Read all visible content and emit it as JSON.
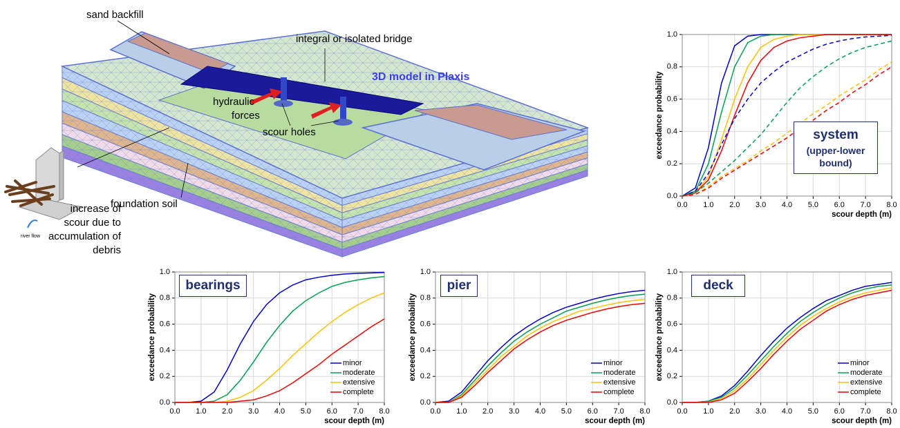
{
  "diagram": {
    "labels": [
      "sand backfill",
      "integral or isolated bridge",
      "3D model in Plaxis",
      "hydraulic",
      "forces",
      "scour holes",
      "foundation soil",
      "increase of",
      "scour due to",
      "accumulation of",
      "debris",
      "river flow"
    ]
  },
  "chart_data": [
    {
      "type": "line",
      "title": "system",
      "subtitle": "(upper-lower bound)",
      "xlabel": "scour depth (m)",
      "ylabel": "exceedance probability",
      "grid": true,
      "x": [
        0,
        0.5,
        1,
        1.5,
        2,
        2.5,
        3,
        3.5,
        4,
        4.5,
        5,
        5.5,
        6,
        6.5,
        7,
        7.5,
        8
      ],
      "xlim": [
        0,
        8
      ],
      "ylim": [
        0,
        1
      ],
      "xticks": [
        {
          "value": 0,
          "label": "0.0"
        },
        {
          "value": 1,
          "label": "1.0"
        },
        {
          "value": 2,
          "label": "2.0"
        },
        {
          "value": 3,
          "label": "3.0"
        },
        {
          "value": 4,
          "label": "4.0"
        },
        {
          "value": 5,
          "label": "5.0"
        },
        {
          "value": 6,
          "label": "6.0"
        },
        {
          "value": 7,
          "label": "7.0"
        },
        {
          "value": 8,
          "label": "8.0"
        }
      ],
      "yticks": [
        {
          "value": 0,
          "label": "0.0"
        },
        {
          "value": 0.2,
          "label": "0.2"
        },
        {
          "value": 0.4,
          "label": "0.4"
        },
        {
          "value": 0.6,
          "label": "0.6"
        },
        {
          "value": 0.8,
          "label": "0.8"
        },
        {
          "value": 1,
          "label": "1.0"
        }
      ],
      "series": [
        {
          "color": "#0000cc",
          "dash": false,
          "values": [
            0,
            0.05,
            0.3,
            0.7,
            0.93,
            0.99,
            1,
            1,
            1,
            1,
            1,
            1,
            1,
            1,
            1,
            1,
            1
          ]
        },
        {
          "color": "#00a050",
          "dash": false,
          "values": [
            0,
            0.03,
            0.2,
            0.52,
            0.8,
            0.95,
            0.99,
            1,
            1,
            1,
            1,
            1,
            1,
            1,
            1,
            1,
            1
          ]
        },
        {
          "color": "#ffc000",
          "dash": false,
          "values": [
            0,
            0.02,
            0.12,
            0.35,
            0.6,
            0.8,
            0.92,
            0.97,
            0.99,
            1,
            1,
            1,
            1,
            1,
            1,
            1,
            1
          ]
        },
        {
          "color": "#ee0000",
          "dash": false,
          "values": [
            0,
            0.02,
            0.1,
            0.28,
            0.5,
            0.7,
            0.84,
            0.92,
            0.96,
            0.98,
            0.99,
            1,
            1,
            1,
            1,
            1,
            1
          ]
        },
        {
          "color": "#0000cc",
          "dash": true,
          "values": [
            0,
            0.03,
            0.14,
            0.32,
            0.48,
            0.6,
            0.7,
            0.77,
            0.83,
            0.87,
            0.91,
            0.94,
            0.96,
            0.975,
            0.985,
            0.99,
            0.995
          ]
        },
        {
          "color": "#00a050",
          "dash": true,
          "values": [
            0,
            0.02,
            0.08,
            0.15,
            0.22,
            0.3,
            0.38,
            0.48,
            0.58,
            0.67,
            0.74,
            0.8,
            0.85,
            0.89,
            0.92,
            0.94,
            0.96
          ]
        },
        {
          "color": "#ffc000",
          "dash": true,
          "values": [
            0,
            0.01,
            0.06,
            0.12,
            0.17,
            0.22,
            0.28,
            0.33,
            0.39,
            0.45,
            0.51,
            0.56,
            0.62,
            0.67,
            0.72,
            0.78,
            0.83
          ]
        },
        {
          "color": "#ee0000",
          "dash": true,
          "values": [
            0,
            0.01,
            0.05,
            0.11,
            0.16,
            0.21,
            0.26,
            0.31,
            0.36,
            0.42,
            0.47,
            0.53,
            0.58,
            0.64,
            0.69,
            0.75,
            0.8
          ]
        }
      ]
    },
    {
      "type": "line",
      "title": "bearings",
      "xlabel": "scour depth (m)",
      "ylabel": "exceedance probability",
      "grid": true,
      "legend": "lower right",
      "x": [
        0,
        0.5,
        1,
        1.5,
        2,
        2.5,
        3,
        3.5,
        4,
        4.5,
        5,
        5.5,
        6,
        6.5,
        7,
        7.5,
        8
      ],
      "xlim": [
        0,
        8
      ],
      "ylim": [
        0,
        1
      ],
      "xticks": [
        {
          "value": 0,
          "label": "0.0"
        },
        {
          "value": 1,
          "label": "1.0"
        },
        {
          "value": 2,
          "label": "2.0"
        },
        {
          "value": 3,
          "label": "3.0"
        },
        {
          "value": 4,
          "label": "4.0"
        },
        {
          "value": 5,
          "label": "5.0"
        },
        {
          "value": 6,
          "label": "6.0"
        },
        {
          "value": 7,
          "label": "7.0"
        },
        {
          "value": 8,
          "label": "8.0"
        }
      ],
      "yticks": [
        {
          "value": 0,
          "label": "0.0"
        },
        {
          "value": 0.2,
          "label": "0.2"
        },
        {
          "value": 0.4,
          "label": "0.4"
        },
        {
          "value": 0.6,
          "label": "0.6"
        },
        {
          "value": 0.8,
          "label": "0.8"
        },
        {
          "value": 1,
          "label": "1.0"
        }
      ],
      "series": [
        {
          "name": "minor",
          "color": "#0000cc",
          "values": [
            0,
            0,
            0.01,
            0.08,
            0.25,
            0.45,
            0.62,
            0.75,
            0.84,
            0.9,
            0.94,
            0.96,
            0.975,
            0.985,
            0.99,
            0.993,
            0.996
          ]
        },
        {
          "name": "moderate",
          "color": "#00a050",
          "values": [
            0,
            0,
            0,
            0.01,
            0.06,
            0.17,
            0.31,
            0.46,
            0.59,
            0.7,
            0.78,
            0.84,
            0.89,
            0.92,
            0.94,
            0.955,
            0.965
          ]
        },
        {
          "name": "extensive",
          "color": "#ffc000",
          "values": [
            0,
            0,
            0,
            0,
            0.01,
            0.04,
            0.09,
            0.17,
            0.26,
            0.36,
            0.45,
            0.54,
            0.62,
            0.69,
            0.75,
            0.8,
            0.84
          ]
        },
        {
          "name": "complete",
          "color": "#ee0000",
          "values": [
            0,
            0,
            0,
            0,
            0,
            0.01,
            0.02,
            0.05,
            0.09,
            0.15,
            0.22,
            0.29,
            0.37,
            0.44,
            0.51,
            0.58,
            0.64
          ]
        }
      ]
    },
    {
      "type": "line",
      "title": "pier",
      "xlabel": "scour depth (m)",
      "ylabel": "exceedance probability",
      "grid": true,
      "legend": "lower right",
      "x": [
        0,
        0.5,
        1,
        1.5,
        2,
        2.5,
        3,
        3.5,
        4,
        4.5,
        5,
        5.5,
        6,
        6.5,
        7,
        7.5,
        8
      ],
      "xlim": [
        0,
        8
      ],
      "ylim": [
        0,
        1
      ],
      "xticks": [
        {
          "value": 0,
          "label": "0.0"
        },
        {
          "value": 1,
          "label": "1.0"
        },
        {
          "value": 2,
          "label": "2.0"
        },
        {
          "value": 3,
          "label": "3.0"
        },
        {
          "value": 4,
          "label": "4.0"
        },
        {
          "value": 5,
          "label": "5.0"
        },
        {
          "value": 6,
          "label": "6.0"
        },
        {
          "value": 7,
          "label": "7.0"
        },
        {
          "value": 8,
          "label": "8.0"
        }
      ],
      "yticks": [
        {
          "value": 0,
          "label": "0.0"
        },
        {
          "value": 0.2,
          "label": "0.2"
        },
        {
          "value": 0.4,
          "label": "0.4"
        },
        {
          "value": 0.6,
          "label": "0.6"
        },
        {
          "value": 0.8,
          "label": "0.8"
        },
        {
          "value": 1,
          "label": "1.0"
        }
      ],
      "series": [
        {
          "name": "minor",
          "color": "#0000cc",
          "values": [
            0,
            0.01,
            0.08,
            0.2,
            0.32,
            0.42,
            0.51,
            0.58,
            0.64,
            0.69,
            0.73,
            0.76,
            0.79,
            0.815,
            0.835,
            0.85,
            0.86
          ]
        },
        {
          "name": "moderate",
          "color": "#00a050",
          "values": [
            0,
            0,
            0.06,
            0.17,
            0.28,
            0.38,
            0.47,
            0.54,
            0.6,
            0.65,
            0.7,
            0.73,
            0.76,
            0.785,
            0.805,
            0.82,
            0.83
          ]
        },
        {
          "name": "extensive",
          "color": "#ffc000",
          "values": [
            0,
            0,
            0.05,
            0.15,
            0.25,
            0.35,
            0.43,
            0.51,
            0.57,
            0.62,
            0.66,
            0.7,
            0.72,
            0.745,
            0.765,
            0.78,
            0.79
          ]
        },
        {
          "name": "complete",
          "color": "#ee0000",
          "values": [
            0,
            0,
            0.04,
            0.13,
            0.23,
            0.32,
            0.41,
            0.48,
            0.54,
            0.59,
            0.63,
            0.66,
            0.69,
            0.715,
            0.735,
            0.75,
            0.76
          ]
        }
      ]
    },
    {
      "type": "line",
      "title": "deck",
      "xlabel": "scour depth (m)",
      "ylabel": "exceedance probability",
      "grid": true,
      "legend": "lower right",
      "x": [
        0,
        0.5,
        1,
        1.5,
        2,
        2.5,
        3,
        3.5,
        4,
        4.5,
        5,
        5.5,
        6,
        6.5,
        7,
        7.5,
        8
      ],
      "xlim": [
        0,
        8
      ],
      "ylim": [
        0,
        1
      ],
      "xticks": [
        {
          "value": 0,
          "label": "0.0"
        },
        {
          "value": 1,
          "label": "1.0"
        },
        {
          "value": 2,
          "label": "2.0"
        },
        {
          "value": 3,
          "label": "3.0"
        },
        {
          "value": 4,
          "label": "4.0"
        },
        {
          "value": 5,
          "label": "5.0"
        },
        {
          "value": 6,
          "label": "6.0"
        },
        {
          "value": 7,
          "label": "7.0"
        },
        {
          "value": 8,
          "label": "8.0"
        }
      ],
      "yticks": [
        {
          "value": 0,
          "label": "0.0"
        },
        {
          "value": 0.2,
          "label": "0.2"
        },
        {
          "value": 0.4,
          "label": "0.4"
        },
        {
          "value": 0.6,
          "label": "0.6"
        },
        {
          "value": 0.8,
          "label": "0.8"
        },
        {
          "value": 1,
          "label": "1.0"
        }
      ],
      "series": [
        {
          "name": "minor",
          "color": "#0000cc",
          "values": [
            0,
            0,
            0.01,
            0.05,
            0.13,
            0.24,
            0.36,
            0.47,
            0.57,
            0.65,
            0.72,
            0.78,
            0.82,
            0.86,
            0.89,
            0.905,
            0.92
          ]
        },
        {
          "name": "moderate",
          "color": "#00a050",
          "values": [
            0,
            0,
            0.01,
            0.04,
            0.11,
            0.21,
            0.32,
            0.43,
            0.53,
            0.62,
            0.69,
            0.75,
            0.8,
            0.84,
            0.87,
            0.89,
            0.9
          ]
        },
        {
          "name": "extensive",
          "color": "#ffc000",
          "values": [
            0,
            0,
            0,
            0.03,
            0.09,
            0.18,
            0.29,
            0.4,
            0.5,
            0.59,
            0.66,
            0.72,
            0.77,
            0.81,
            0.84,
            0.86,
            0.88
          ]
        },
        {
          "name": "complete",
          "color": "#ee0000",
          "values": [
            0,
            0,
            0,
            0.02,
            0.07,
            0.16,
            0.26,
            0.37,
            0.47,
            0.56,
            0.63,
            0.7,
            0.75,
            0.79,
            0.82,
            0.84,
            0.86
          ]
        }
      ]
    }
  ]
}
